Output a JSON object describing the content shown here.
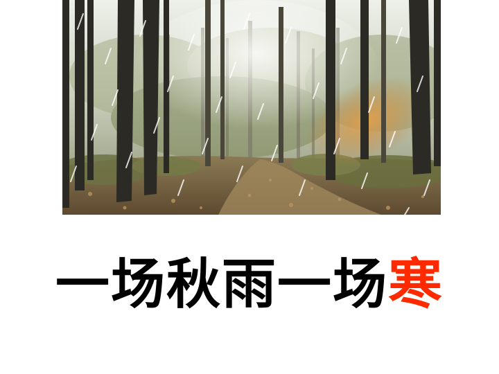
{
  "slide": {
    "background": "#ffffff",
    "image": {
      "subject": "autumn-rain-forest-photo"
    },
    "caption": {
      "main_text": "一场秋雨一场",
      "accent_text": "寒",
      "main_color": "#000000",
      "accent_color": "#ff2a00"
    }
  }
}
